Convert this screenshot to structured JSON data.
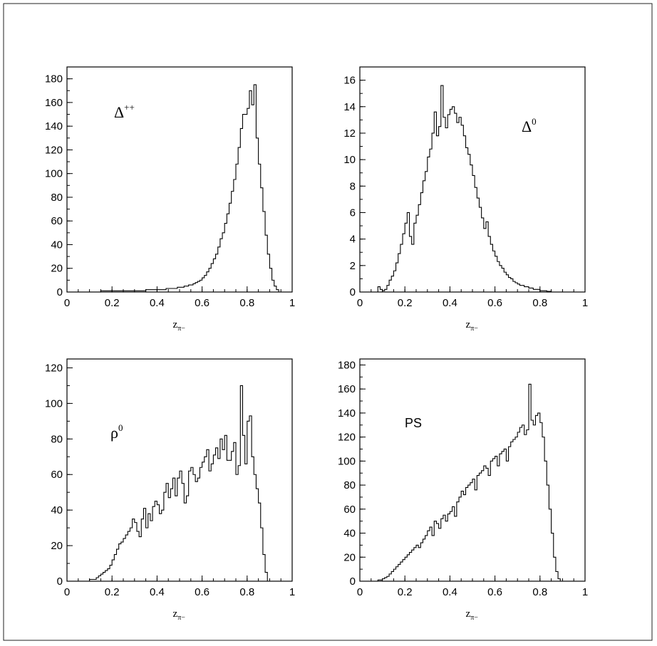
{
  "chart_data": [
    {
      "type": "histogram",
      "panel_label": "Δ",
      "panel_label_sup": "++",
      "xlabel": "z",
      "xlabel_sub": "π−",
      "xlim": [
        0,
        1
      ],
      "ylim": [
        0,
        190
      ],
      "xticks": [
        0,
        0.2,
        0.4,
        0.6,
        0.8,
        1
      ],
      "xtick_labels": [
        "0",
        "0.2",
        "0.4",
        "0.6",
        "0.8",
        "1"
      ],
      "yticks": [
        0,
        20,
        40,
        60,
        80,
        100,
        120,
        140,
        160,
        180
      ],
      "ytick_labels": [
        "0",
        "20",
        "40",
        "60",
        "80",
        "100",
        "120",
        "140",
        "160",
        "180"
      ],
      "bin_start": 0.0,
      "bin_width": 0.01,
      "values": [
        0,
        0,
        0,
        0,
        0,
        0,
        0,
        0,
        0,
        0,
        0,
        0,
        0,
        0,
        0,
        1,
        1,
        1,
        1,
        1,
        1,
        1,
        1,
        1,
        1,
        1,
        1,
        1,
        1,
        1,
        1,
        1,
        1,
        1,
        1,
        2,
        2,
        2,
        2,
        2,
        2,
        2,
        2,
        2,
        3,
        3,
        3,
        3,
        3,
        4,
        4,
        4,
        5,
        5,
        6,
        6,
        7,
        8,
        9,
        10,
        12,
        14,
        17,
        20,
        24,
        28,
        32,
        38,
        45,
        50,
        58,
        66,
        75,
        85,
        95,
        108,
        122,
        138,
        150,
        150,
        155,
        170,
        158,
        175,
        130,
        108,
        88,
        68,
        48,
        32,
        20,
        10,
        5,
        2,
        0,
        0,
        0,
        0,
        0,
        0
      ]
    },
    {
      "type": "histogram",
      "panel_label": "Δ",
      "panel_label_sup": "0",
      "xlabel": "z",
      "xlabel_sub": "π−",
      "xlim": [
        0,
        1
      ],
      "ylim": [
        0,
        17
      ],
      "xticks": [
        0,
        0.2,
        0.4,
        0.6,
        0.8,
        1
      ],
      "xtick_labels": [
        "0",
        "0.2",
        "0.4",
        "0.6",
        "0.8",
        "1"
      ],
      "yticks": [
        0,
        2,
        4,
        6,
        8,
        10,
        12,
        14,
        16
      ],
      "ytick_labels": [
        "0",
        "2",
        "4",
        "6",
        "8",
        "10",
        "12",
        "14",
        "16"
      ],
      "bin_start": 0.0,
      "bin_width": 0.01,
      "values": [
        0,
        0,
        0,
        0,
        0,
        0,
        0,
        0,
        0.4,
        0.2,
        0.1,
        0.2,
        0.5,
        0.9,
        1.2,
        1.6,
        2.2,
        2.9,
        3.6,
        4.4,
        5.2,
        6.0,
        4.2,
        3.6,
        5.2,
        5.8,
        6.6,
        7.5,
        8.4,
        9.1,
        10.2,
        10.8,
        12.0,
        13.6,
        11.8,
        12.5,
        15.6,
        13.2,
        12.4,
        13.4,
        13.8,
        14.0,
        13.5,
        12.8,
        13.2,
        12.6,
        11.8,
        10.9,
        10.4,
        9.6,
        8.8,
        7.9,
        7.1,
        6.4,
        5.6,
        4.8,
        5.3,
        4.2,
        3.6,
        3.1,
        2.7,
        2.3,
        2.0,
        1.8,
        1.5,
        1.3,
        1.1,
        1.0,
        0.8,
        0.7,
        0.6,
        0.5,
        0.5,
        0.4,
        0.4,
        0.3,
        0.3,
        0.2,
        0.2,
        0.2,
        0.1,
        0.1,
        0.1,
        0.05,
        0.05,
        0,
        0,
        0,
        0,
        0,
        0,
        0,
        0,
        0,
        0,
        0,
        0,
        0,
        0,
        0
      ]
    },
    {
      "type": "histogram",
      "panel_label": "ρ",
      "panel_label_sup": "0",
      "xlabel": "z",
      "xlabel_sub": "π−",
      "xlim": [
        0,
        1
      ],
      "ylim": [
        0,
        125
      ],
      "xticks": [
        0,
        0.2,
        0.4,
        0.6,
        0.8,
        1
      ],
      "xtick_labels": [
        "0",
        "0.2",
        "0.4",
        "0.6",
        "0.8",
        "1"
      ],
      "yticks": [
        0,
        20,
        40,
        60,
        80,
        100,
        120
      ],
      "ytick_labels": [
        "0",
        "20",
        "40",
        "60",
        "80",
        "100",
        "120"
      ],
      "bin_start": 0.0,
      "bin_width": 0.01,
      "values": [
        0,
        0,
        0,
        0,
        0,
        0,
        0,
        0,
        0,
        0,
        1,
        1,
        1,
        2,
        3,
        4,
        5,
        6,
        7,
        9,
        12,
        15,
        18,
        21,
        22,
        24,
        26,
        28,
        30,
        35,
        33,
        28,
        25,
        35,
        41,
        30,
        38,
        34,
        42,
        45,
        43,
        38,
        40,
        50,
        55,
        47,
        52,
        58,
        48,
        58,
        62,
        55,
        44,
        48,
        62,
        64,
        60,
        56,
        58,
        64,
        67,
        70,
        74,
        62,
        66,
        71,
        75,
        69,
        80,
        74,
        82,
        68,
        68,
        73,
        78,
        60,
        65,
        110,
        82,
        66,
        90,
        93,
        70,
        60,
        52,
        44,
        30,
        15,
        5,
        0,
        0,
        0,
        0,
        0,
        0,
        0,
        0,
        0,
        0,
        0
      ]
    },
    {
      "type": "histogram",
      "panel_label": "PS",
      "panel_label_sup": "",
      "xlabel": "z",
      "xlabel_sub": "π−",
      "xlim": [
        0,
        1
      ],
      "ylim": [
        0,
        185
      ],
      "xticks": [
        0,
        0.2,
        0.4,
        0.6,
        0.8,
        1
      ],
      "xtick_labels": [
        "0",
        "0.2",
        "0.4",
        "0.6",
        "0.8",
        "1"
      ],
      "yticks": [
        0,
        20,
        40,
        60,
        80,
        100,
        120,
        140,
        160,
        180
      ],
      "ytick_labels": [
        "0",
        "20",
        "40",
        "60",
        "80",
        "100",
        "120",
        "140",
        "160",
        "180"
      ],
      "bin_start": 0.0,
      "bin_width": 0.01,
      "values": [
        0,
        0,
        0,
        0,
        0,
        0,
        0,
        0,
        1,
        1,
        2,
        3,
        4,
        6,
        8,
        10,
        12,
        14,
        16,
        18,
        20,
        22,
        24,
        26,
        28,
        30,
        28,
        32,
        35,
        38,
        42,
        45,
        38,
        50,
        48,
        44,
        52,
        55,
        50,
        56,
        58,
        62,
        54,
        66,
        70,
        75,
        72,
        78,
        80,
        82,
        85,
        76,
        88,
        90,
        92,
        96,
        94,
        88,
        100,
        102,
        104,
        96,
        106,
        108,
        110,
        100,
        112,
        116,
        118,
        120,
        124,
        128,
        130,
        122,
        126,
        164,
        134,
        130,
        138,
        140,
        132,
        120,
        100,
        80,
        60,
        40,
        20,
        8,
        2,
        0,
        0,
        0,
        0,
        0,
        0,
        0,
        0,
        0,
        0,
        0
      ]
    }
  ]
}
